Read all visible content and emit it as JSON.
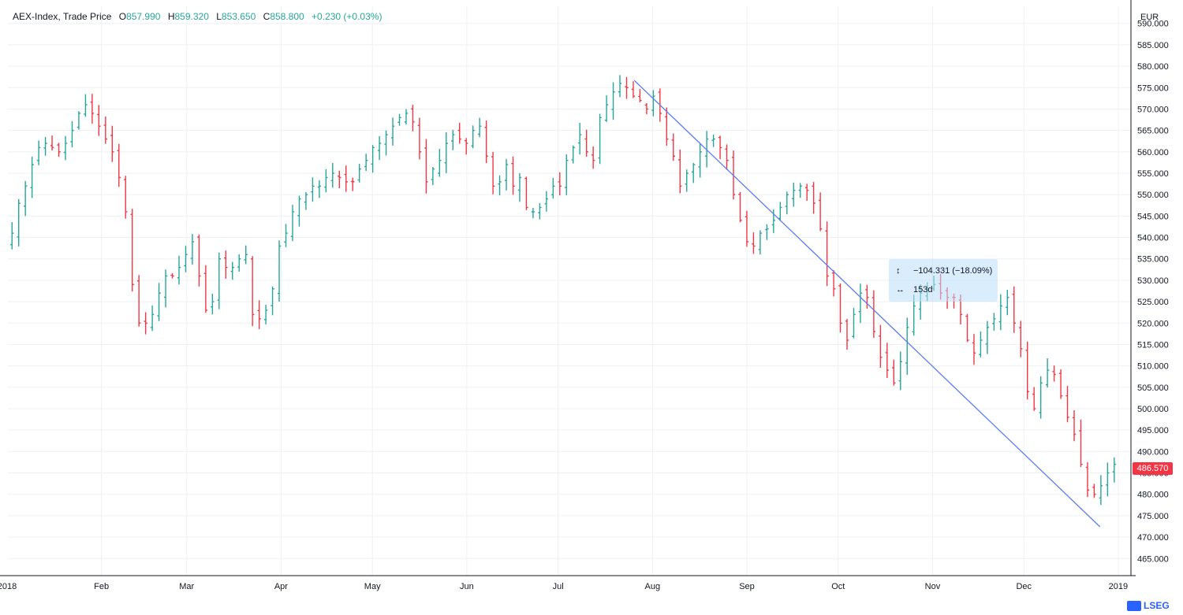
{
  "legend": {
    "title": "AEX-Index, Trade Price",
    "o_label": "O",
    "o_value": "857.990",
    "h_label": "H",
    "h_value": "859.320",
    "l_label": "L",
    "l_value": "853.650",
    "c_label": "C",
    "c_value": "858.800",
    "change": "+0.230 (+0.03%)"
  },
  "axis": {
    "currency": "EUR"
  },
  "last_price": "486.570",
  "measure": {
    "price_change": "−104.331 (−18.09%)",
    "duration": "153d"
  },
  "logo_text": "LSEG",
  "colors": {
    "up": "#26a69a",
    "down": "#f23645",
    "trend_line": "#5b7cf2",
    "grid": "#eef0f3"
  },
  "chart_data": {
    "type": "ohlc",
    "title": "AEX-Index, Trade Price",
    "ylabel": "EUR",
    "ylim": [
      461,
      594
    ],
    "ytick_labels": [
      "590.000",
      "585.000",
      "580.000",
      "575.000",
      "570.000",
      "565.000",
      "560.000",
      "555.000",
      "550.000",
      "545.000",
      "540.000",
      "535.000",
      "530.000",
      "525.000",
      "520.000",
      "515.000",
      "510.000",
      "505.000",
      "500.000",
      "495.000",
      "490.000",
      "485.000",
      "480.000",
      "475.000",
      "470.000",
      "465.000"
    ],
    "yticks": [
      590,
      585,
      580,
      575,
      570,
      565,
      560,
      555,
      550,
      545,
      540,
      535,
      530,
      525,
      520,
      515,
      510,
      505,
      500,
      495,
      490,
      485,
      480,
      475,
      470,
      465
    ],
    "xtick_labels": [
      "2018",
      "Feb",
      "Mar",
      "Apr",
      "May",
      "Jun",
      "Jul",
      "Aug",
      "Sep",
      "Oct",
      "Nov",
      "Dec",
      "2019"
    ],
    "xtick_days": [
      0,
      31,
      59,
      90,
      120,
      151,
      181,
      212,
      243,
      273,
      304,
      334,
      365
    ],
    "closes": [
      541,
      548,
      552,
      557,
      561,
      562,
      561,
      560,
      562,
      565,
      569,
      571,
      569,
      566,
      563,
      560,
      554,
      546,
      529,
      520,
      520,
      522,
      527,
      531,
      531,
      533,
      536,
      539,
      531,
      523,
      525,
      535,
      533,
      533,
      535,
      536,
      522,
      521,
      523,
      528,
      538,
      541,
      546,
      549,
      550,
      552,
      552,
      554,
      555,
      554,
      553,
      553,
      556,
      558,
      561,
      562,
      564,
      566,
      568,
      569,
      567,
      560,
      553,
      556,
      558,
      562,
      564,
      563,
      562,
      565,
      566,
      559,
      552,
      553,
      557,
      552,
      554,
      547,
      546,
      547,
      549,
      552,
      552,
      558,
      561,
      564,
      560,
      558,
      568,
      571,
      574,
      576,
      575,
      573,
      572,
      570,
      573,
      569,
      563,
      559,
      552,
      555,
      557,
      560,
      563,
      563,
      561,
      558,
      550,
      544,
      539,
      538,
      541,
      542,
      544,
      547,
      550,
      551,
      552,
      551,
      548,
      542,
      531,
      528,
      520,
      516,
      522,
      527,
      526,
      518,
      512,
      509,
      506,
      511,
      519,
      524,
      527,
      528,
      529,
      527,
      526,
      526,
      522,
      516,
      513,
      516,
      519,
      521,
      524,
      526,
      520,
      514,
      504,
      500,
      506,
      509,
      508,
      503,
      498,
      494,
      487,
      481,
      480,
      482,
      485,
      487
    ],
    "last_close": 486.57,
    "trend_line": {
      "start": {
        "date": "2018-07-26",
        "value": 576.7
      },
      "end": {
        "date": "2018-12-26",
        "value": 472.4
      }
    },
    "measure": {
      "price_change": -104.331,
      "percent_change": -18.09,
      "duration_days": 153
    }
  }
}
